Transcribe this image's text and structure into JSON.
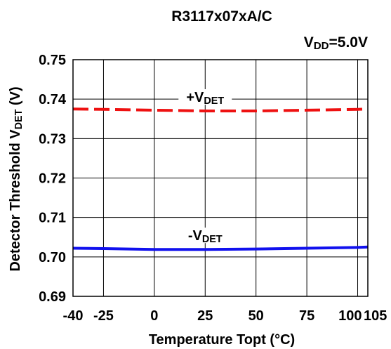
{
  "chart_data": {
    "type": "line",
    "title": "R3117x07xA/C",
    "condition": {
      "main": "V",
      "sub": "DD",
      "rest": "=5.0V"
    },
    "xlabel": "Temperature Topt (°C)",
    "ylabel": {
      "main": "Detector Threshold V",
      "sub": "DET",
      "rest": " (V)"
    },
    "xlim": [
      -40,
      105
    ],
    "ylim": [
      0.69,
      0.75
    ],
    "x_ticks": [
      -40,
      -25,
      0,
      25,
      50,
      75,
      100,
      105
    ],
    "x_tick_labels": [
      "-40",
      "-25",
      "0",
      "25",
      "50",
      "75",
      "100",
      "105"
    ],
    "y_ticks": [
      0.69,
      0.7,
      0.71,
      0.72,
      0.73,
      0.74,
      0.75
    ],
    "y_tick_labels": [
      "0.69",
      "0.70",
      "0.71",
      "0.72",
      "0.73",
      "0.74",
      "0.75"
    ],
    "grid": true,
    "series": [
      {
        "label": {
          "main": "+V",
          "sub": "DET"
        },
        "color": "#ee1111",
        "dashed": true,
        "x": [
          -40,
          -25,
          0,
          25,
          50,
          75,
          100,
          105
        ],
        "y": [
          0.7375,
          0.7374,
          0.7372,
          0.737,
          0.737,
          0.7372,
          0.7374,
          0.7375
        ]
      },
      {
        "label": {
          "main": "-V",
          "sub": "DET"
        },
        "color": "#1111ee",
        "dashed": false,
        "x": [
          -40,
          -25,
          0,
          25,
          50,
          75,
          100,
          105
        ],
        "y": [
          0.7022,
          0.7021,
          0.7019,
          0.7019,
          0.702,
          0.7022,
          0.7024,
          0.7025
        ]
      }
    ]
  }
}
